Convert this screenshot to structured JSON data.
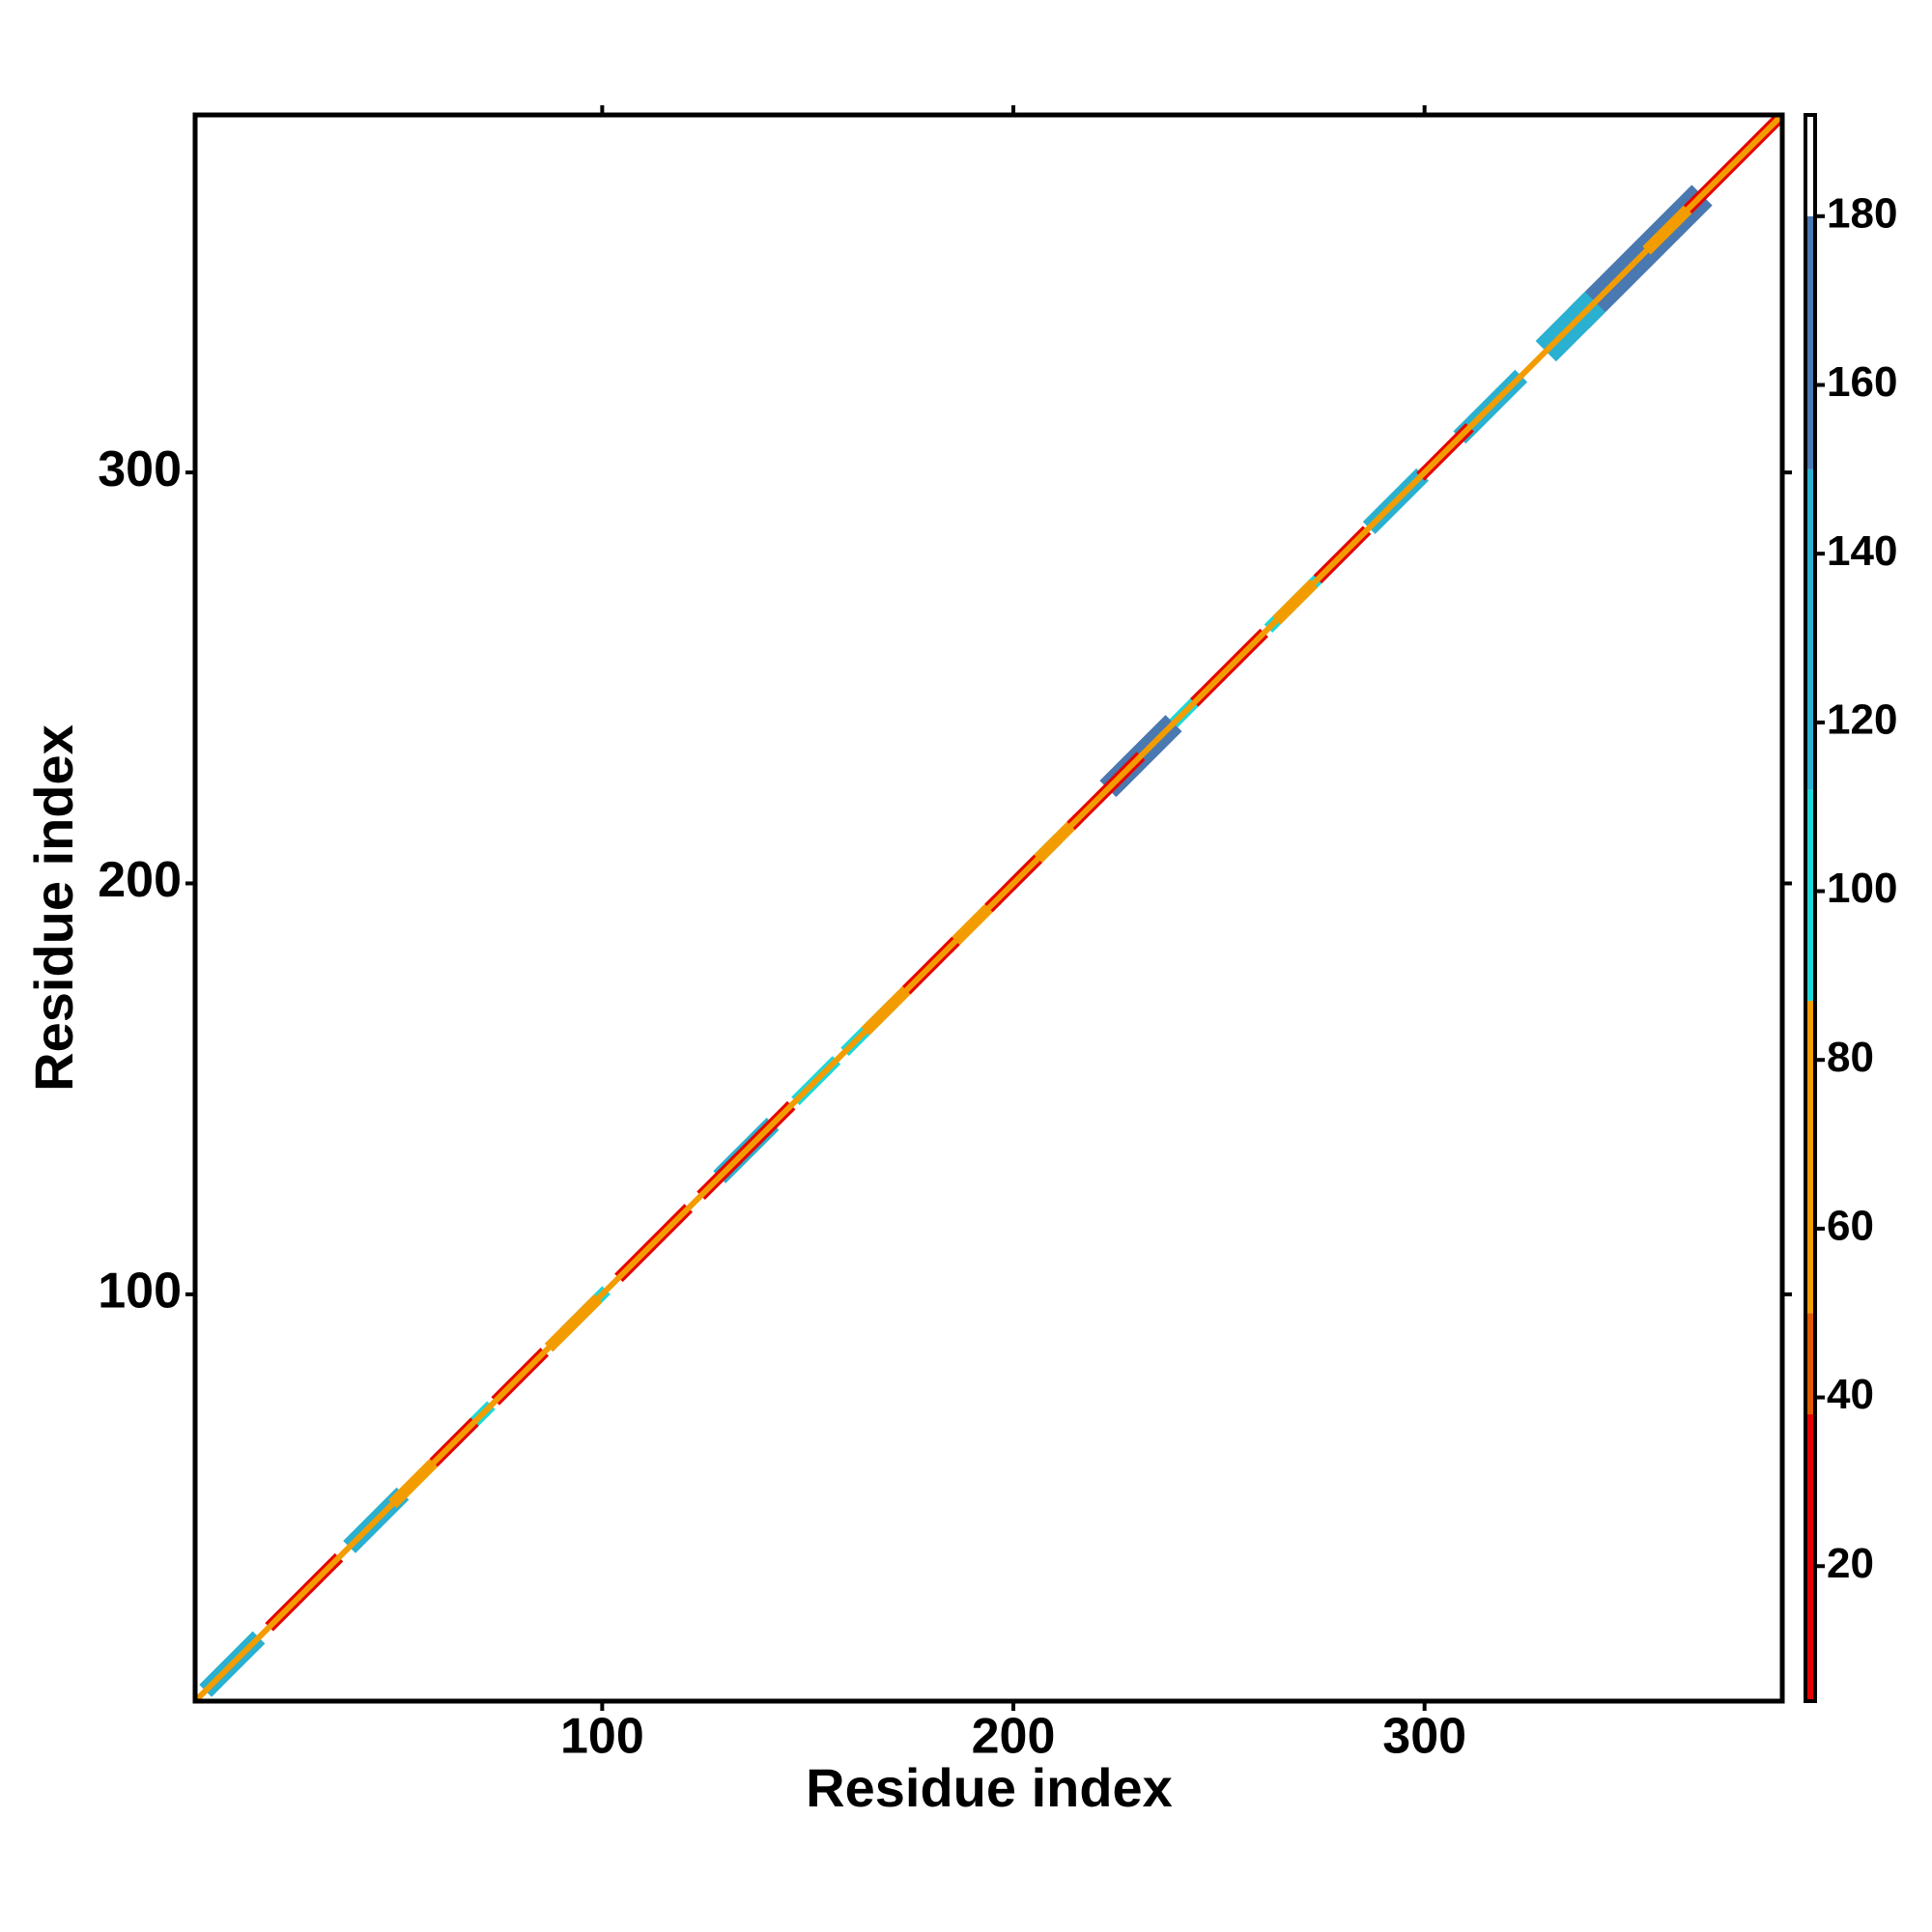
{
  "chart_data": {
    "type": "heatmap",
    "x_label": "Residue index",
    "y_label": "Residue index",
    "xlim": [
      1,
      387
    ],
    "ylim": [
      1,
      387
    ],
    "xticks": [
      100,
      200,
      300
    ],
    "yticks": [
      100,
      200,
      300
    ],
    "colorbar": {
      "lim": [
        4,
        192
      ],
      "ticks": [
        20,
        40,
        60,
        80,
        100,
        120,
        140,
        160,
        180
      ],
      "bands": [
        {
          "from": 4,
          "to": 38,
          "color": "#e60000"
        },
        {
          "from": 38,
          "to": 50,
          "color": "#e05a00"
        },
        {
          "from": 50,
          "to": 87,
          "color": "#f39c00"
        },
        {
          "from": 87,
          "to": 112,
          "color": "#1ed8d8"
        },
        {
          "from": 112,
          "to": 150,
          "color": "#2ab0d0"
        },
        {
          "from": 150,
          "to": 180,
          "color": "#4a78b0"
        },
        {
          "from": 180,
          "to": 192,
          "color": "#ffffff"
        }
      ]
    },
    "segments": [
      {
        "start": 340,
        "end": 365,
        "offset": 5,
        "value": 160
      },
      {
        "start": 332,
        "end": 339,
        "offset": 5,
        "value": 125
      },
      {
        "start": 225,
        "end": 237,
        "offset": 4,
        "value": 160
      },
      {
        "start": 288,
        "end": 298,
        "offset": 3,
        "value": 150
      },
      {
        "start": 310,
        "end": 322,
        "offset": 3,
        "value": 140
      },
      {
        "start": 5,
        "end": 15,
        "offset": 3,
        "value": 150
      },
      {
        "start": 40,
        "end": 50,
        "offset": 3,
        "value": 140
      },
      {
        "start": 130,
        "end": 140,
        "offset": 3,
        "value": 140
      },
      {
        "start": 148,
        "end": 156,
        "offset": 2,
        "value": 100
      },
      {
        "start": 160,
        "end": 170,
        "offset": 2,
        "value": 100
      },
      {
        "start": 200,
        "end": 210,
        "offset": 2,
        "value": 100
      },
      {
        "start": 240,
        "end": 245,
        "offset": 2,
        "value": 100
      },
      {
        "start": 263,
        "end": 283,
        "offset": 2,
        "value": 100
      },
      {
        "start": 65,
        "end": 72,
        "offset": 2,
        "value": 100
      },
      {
        "start": 92,
        "end": 100,
        "offset": 2,
        "value": 100
      },
      {
        "start": 50,
        "end": 58,
        "offset": 2,
        "value": 70
      },
      {
        "start": 88,
        "end": 98,
        "offset": 2,
        "value": 70
      },
      {
        "start": 165,
        "end": 175,
        "offset": 2,
        "value": 70
      },
      {
        "start": 185,
        "end": 195,
        "offset": 2,
        "value": 70
      },
      {
        "start": 205,
        "end": 215,
        "offset": 2,
        "value": 70
      },
      {
        "start": 265,
        "end": 272,
        "offset": 2,
        "value": 70
      },
      {
        "start": 355,
        "end": 365,
        "offset": 2,
        "value": 70
      },
      {
        "start": 20,
        "end": 35,
        "offset": 2,
        "value": 20
      },
      {
        "start": 60,
        "end": 68,
        "offset": 2,
        "value": 20
      },
      {
        "start": 75,
        "end": 85,
        "offset": 2,
        "value": 20
      },
      {
        "start": 105,
        "end": 120,
        "offset": 2,
        "value": 20
      },
      {
        "start": 125,
        "end": 145,
        "offset": 2,
        "value": 20
      },
      {
        "start": 175,
        "end": 185,
        "offset": 2,
        "value": 20
      },
      {
        "start": 195,
        "end": 205,
        "offset": 2,
        "value": 20
      },
      {
        "start": 215,
        "end": 230,
        "offset": 2,
        "value": 20
      },
      {
        "start": 245,
        "end": 260,
        "offset": 2,
        "value": 20
      },
      {
        "start": 275,
        "end": 285,
        "offset": 2,
        "value": 20
      },
      {
        "start": 300,
        "end": 310,
        "offset": 2,
        "value": 20
      },
      {
        "start": 365,
        "end": 385,
        "offset": 2,
        "value": 20
      },
      {
        "start": 1,
        "end": 387,
        "offset": 1,
        "value": 60
      }
    ]
  }
}
